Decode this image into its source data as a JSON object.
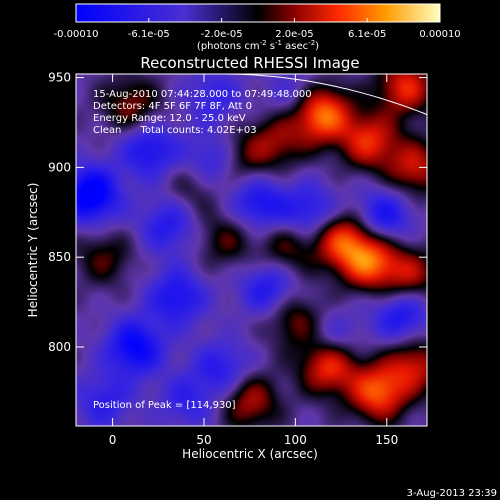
{
  "chart_data": {
    "type": "heatmap",
    "title": "Reconstructed RHESSI Image",
    "xlabel": "Heliocentric X (arcsec)",
    "ylabel": "Heliocentric Y (arcsec)",
    "xlim": [
      -20,
      172
    ],
    "ylim": [
      756,
      952
    ],
    "xticks": [
      0,
      50,
      100,
      150
    ],
    "yticks": [
      800,
      850,
      900,
      950
    ],
    "colorbar": {
      "ticklabels": [
        "-0.00010",
        "-6.1e-05",
        "-2.0e-05",
        "2.0e-05",
        "6.1e-05",
        "0.00010"
      ],
      "label_main": "(photons cm",
      "label_sup1": "-2",
      "label_mid1": " s",
      "label_sup2": "-1",
      "label_mid2": " asec",
      "label_sup3": "-2",
      "label_end": ")",
      "range": [
        -0.0001,
        0.0001
      ]
    },
    "annotations": [
      "15-Aug-2010 07:44:28.000 to 07:49:48.000",
      "Detectors: 4F 5F 6F 7F 8F, Att 0",
      "Energy Range: 12.0 - 25.0 keV",
      "Clean      Total counts: 4.02E+03",
      "Position of Peak = [114,930]"
    ],
    "blobs": [
      {
        "x": -12,
        "y": 885,
        "v": -0.85
      },
      {
        "x": 20,
        "y": 910,
        "v": -0.55
      },
      {
        "x": 55,
        "y": 903,
        "v": -0.5
      },
      {
        "x": 30,
        "y": 868,
        "v": -0.45
      },
      {
        "x": 80,
        "y": 880,
        "v": -0.55
      },
      {
        "x": 108,
        "y": 875,
        "v": -0.5
      },
      {
        "x": 35,
        "y": 828,
        "v": -0.55
      },
      {
        "x": 12,
        "y": 800,
        "v": -0.7
      },
      {
        "x": 60,
        "y": 788,
        "v": -0.45
      },
      {
        "x": 85,
        "y": 833,
        "v": -0.5
      },
      {
        "x": 148,
        "y": 873,
        "v": -0.55
      },
      {
        "x": 158,
        "y": 818,
        "v": -0.55
      },
      {
        "x": 120,
        "y": 805,
        "v": -0.35
      },
      {
        "x": -5,
        "y": 770,
        "v": -0.4
      },
      {
        "x": 40,
        "y": 770,
        "v": -0.35
      },
      {
        "x": 100,
        "y": 940,
        "v": -0.3
      },
      {
        "x": 55,
        "y": 940,
        "v": -0.35
      },
      {
        "x": 114,
        "y": 930,
        "v": 1.0
      },
      {
        "x": 140,
        "y": 915,
        "v": 0.7
      },
      {
        "x": 165,
        "y": 900,
        "v": 0.6
      },
      {
        "x": 160,
        "y": 945,
        "v": 0.7
      },
      {
        "x": 125,
        "y": 860,
        "v": 0.75
      },
      {
        "x": 140,
        "y": 848,
        "v": 0.85
      },
      {
        "x": 118,
        "y": 790,
        "v": 0.8
      },
      {
        "x": 145,
        "y": 775,
        "v": 0.85
      },
      {
        "x": 165,
        "y": 790,
        "v": 0.6
      },
      {
        "x": 162,
        "y": 840,
        "v": 0.55
      },
      {
        "x": 90,
        "y": 915,
        "v": 0.45
      },
      {
        "x": 70,
        "y": 905,
        "v": 0.4
      },
      {
        "x": 62,
        "y": 860,
        "v": 0.35
      },
      {
        "x": 95,
        "y": 855,
        "v": 0.4
      },
      {
        "x": 10,
        "y": 935,
        "v": 0.45
      },
      {
        "x": -5,
        "y": 850,
        "v": 0.35
      },
      {
        "x": 75,
        "y": 770,
        "v": 0.55
      },
      {
        "x": 100,
        "y": 815,
        "v": 0.45
      },
      {
        "x": 45,
        "y": 890,
        "v": 0.3
      }
    ],
    "peak": {
      "x": 114,
      "y": 930
    },
    "limb": "solar limb arc, upper right"
  },
  "footer": {
    "timestamp": "3-Aug-2013 23:39"
  }
}
